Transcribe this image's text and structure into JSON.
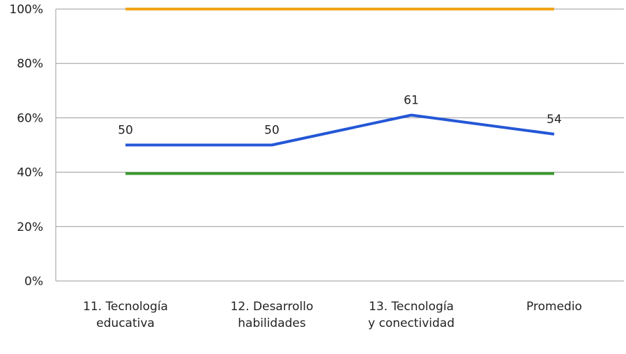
{
  "chart_data": {
    "type": "line",
    "categories": [
      [
        "11. Tecnología",
        "educativa"
      ],
      [
        "12. Desarrollo",
        "habilidades"
      ],
      [
        "13. Tecnología",
        "y conectividad"
      ],
      [
        "Promedio"
      ]
    ],
    "y_ticks": [
      "0%",
      "20%",
      "40%",
      "60%",
      "80%",
      "100%"
    ],
    "ylim": [
      0,
      100
    ],
    "grid": true,
    "series": [
      {
        "values": [
          50,
          50,
          61,
          54
        ],
        "data_labels": [
          "50",
          "50",
          "61",
          "54"
        ],
        "color": "#2457d6"
      }
    ],
    "reference_lines": [
      {
        "value": 100,
        "color": "#f2a518"
      },
      {
        "value": 39.5,
        "color": "#3a9a2e"
      }
    ]
  }
}
